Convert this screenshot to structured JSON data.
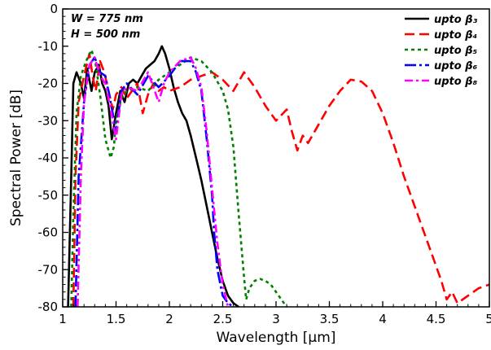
{
  "chart_data": {
    "type": "line",
    "title": "",
    "xlabel": "Wavelength [µm]",
    "ylabel": "Spectral Power [dB]",
    "xlim": [
      1,
      5
    ],
    "ylim": [
      -80,
      0
    ],
    "xticks": [
      "1",
      "1.5",
      "2",
      "2.5",
      "3",
      "3.5",
      "4",
      "4.5",
      "5"
    ],
    "yticks": [
      "0",
      "-10",
      "-20",
      "-30",
      "-40",
      "-50",
      "-60",
      "-70",
      "-80"
    ],
    "annotations": [
      "W = 775 nm",
      "H = 500 nm"
    ],
    "legend_position": "top-right",
    "grid": false,
    "series": [
      {
        "name": "upto β₃",
        "color": "#000000",
        "dash": "solid",
        "x": [
          1.05,
          1.08,
          1.1,
          1.13,
          1.17,
          1.2,
          1.23,
          1.27,
          1.3,
          1.34,
          1.37,
          1.4,
          1.43,
          1.46,
          1.5,
          1.54,
          1.58,
          1.62,
          1.66,
          1.7,
          1.74,
          1.78,
          1.82,
          1.86,
          1.9,
          1.93,
          1.96,
          2.0,
          2.04,
          2.08,
          2.12,
          2.16,
          2.2,
          2.25,
          2.3,
          2.35,
          2.4,
          2.45,
          2.5,
          2.55,
          2.6,
          2.65
        ],
        "y": [
          -80,
          -45,
          -20,
          -17,
          -20,
          -24,
          -16,
          -22,
          -17,
          -15,
          -20,
          -22,
          -26,
          -35,
          -28,
          -22,
          -25,
          -20,
          -19,
          -20,
          -18,
          -16,
          -15,
          -14,
          -12,
          -10,
          -12,
          -16,
          -21,
          -25,
          -28,
          -30,
          -34,
          -40,
          -46,
          -53,
          -60,
          -67,
          -73,
          -77,
          -79,
          -80
        ]
      },
      {
        "name": "upto β₄",
        "color": "#ff0000",
        "dash": "12,6",
        "x": [
          1.1,
          1.12,
          1.15,
          1.2,
          1.25,
          1.28,
          1.31,
          1.35,
          1.39,
          1.43,
          1.47,
          1.5,
          1.55,
          1.6,
          1.65,
          1.7,
          1.75,
          1.8,
          1.85,
          1.9,
          1.95,
          2.0,
          2.1,
          2.2,
          2.3,
          2.4,
          2.5,
          2.6,
          2.7,
          2.8,
          2.9,
          3.0,
          3.1,
          3.15,
          3.2,
          3.25,
          3.3,
          3.4,
          3.5,
          3.6,
          3.7,
          3.8,
          3.9,
          4.0,
          4.1,
          4.2,
          4.3,
          4.4,
          4.5,
          4.55,
          4.6,
          4.65,
          4.7,
          4.8,
          4.9,
          5.0
        ],
        "y": [
          -80,
          -45,
          -25,
          -18,
          -12,
          -18,
          -22,
          -14,
          -17,
          -22,
          -27,
          -23,
          -21,
          -24,
          -22,
          -20,
          -28,
          -23,
          -20,
          -22,
          -21,
          -22,
          -21,
          -19,
          -18,
          -17,
          -19,
          -22,
          -17,
          -21,
          -26,
          -30,
          -27,
          -33,
          -38,
          -34,
          -36,
          -31,
          -26,
          -22,
          -19,
          -19.5,
          -22,
          -28,
          -36,
          -45,
          -53,
          -61,
          -69,
          -73,
          -78,
          -76,
          -79,
          -77,
          -75,
          -74
        ]
      },
      {
        "name": "upto β₅",
        "color": "#008000",
        "dash": "4,4",
        "x": [
          1.08,
          1.1,
          1.13,
          1.17,
          1.22,
          1.27,
          1.31,
          1.35,
          1.4,
          1.45,
          1.48,
          1.5,
          1.55,
          1.6,
          1.7,
          1.8,
          1.9,
          2.0,
          2.1,
          2.2,
          2.3,
          2.4,
          2.5,
          2.55,
          2.6,
          2.65,
          2.7,
          2.72,
          2.75,
          2.8,
          2.85,
          2.9,
          2.95,
          3.0,
          3.05,
          3.1
        ],
        "y": [
          -80,
          -55,
          -28,
          -18,
          -14,
          -11,
          -15,
          -23,
          -35,
          -40,
          -37,
          -30,
          -24,
          -22,
          -21,
          -22,
          -19,
          -17,
          -15,
          -13,
          -14,
          -17,
          -22,
          -27,
          -37,
          -55,
          -72,
          -78,
          -75,
          -73,
          -72.5,
          -73,
          -74,
          -76,
          -78,
          -80
        ]
      },
      {
        "name": "upto β₆",
        "color": "#0000ff",
        "dash": "14,4,3,4",
        "x": [
          1.12,
          1.15,
          1.2,
          1.25,
          1.3,
          1.35,
          1.4,
          1.45,
          1.5,
          1.55,
          1.6,
          1.7,
          1.8,
          1.9,
          2.0,
          2.1,
          2.2,
          2.25,
          2.3,
          2.35,
          2.4,
          2.42,
          2.45,
          2.5,
          2.55,
          2.6
        ],
        "y": [
          -80,
          -45,
          -25,
          -15,
          -13,
          -17,
          -18,
          -25,
          -33,
          -22,
          -20,
          -23,
          -18,
          -21,
          -18,
          -14,
          -14,
          -17,
          -22,
          -35,
          -50,
          -60,
          -70,
          -77,
          -79,
          -80
        ]
      },
      {
        "name": "upto β₈",
        "color": "#ff00ff",
        "dash": "10,4,3,4",
        "x": [
          1.14,
          1.17,
          1.2,
          1.25,
          1.3,
          1.35,
          1.4,
          1.45,
          1.5,
          1.55,
          1.6,
          1.7,
          1.8,
          1.9,
          1.95,
          2.0,
          2.1,
          2.2,
          2.25,
          2.3,
          2.35,
          2.4,
          2.45,
          2.5,
          2.55
        ],
        "y": [
          -80,
          -45,
          -25,
          -15,
          -13,
          -18,
          -20,
          -27,
          -35,
          -23,
          -21,
          -22,
          -17,
          -25,
          -20,
          -17,
          -14,
          -13,
          -16,
          -21,
          -33,
          -48,
          -63,
          -74,
          -80
        ]
      }
    ]
  }
}
